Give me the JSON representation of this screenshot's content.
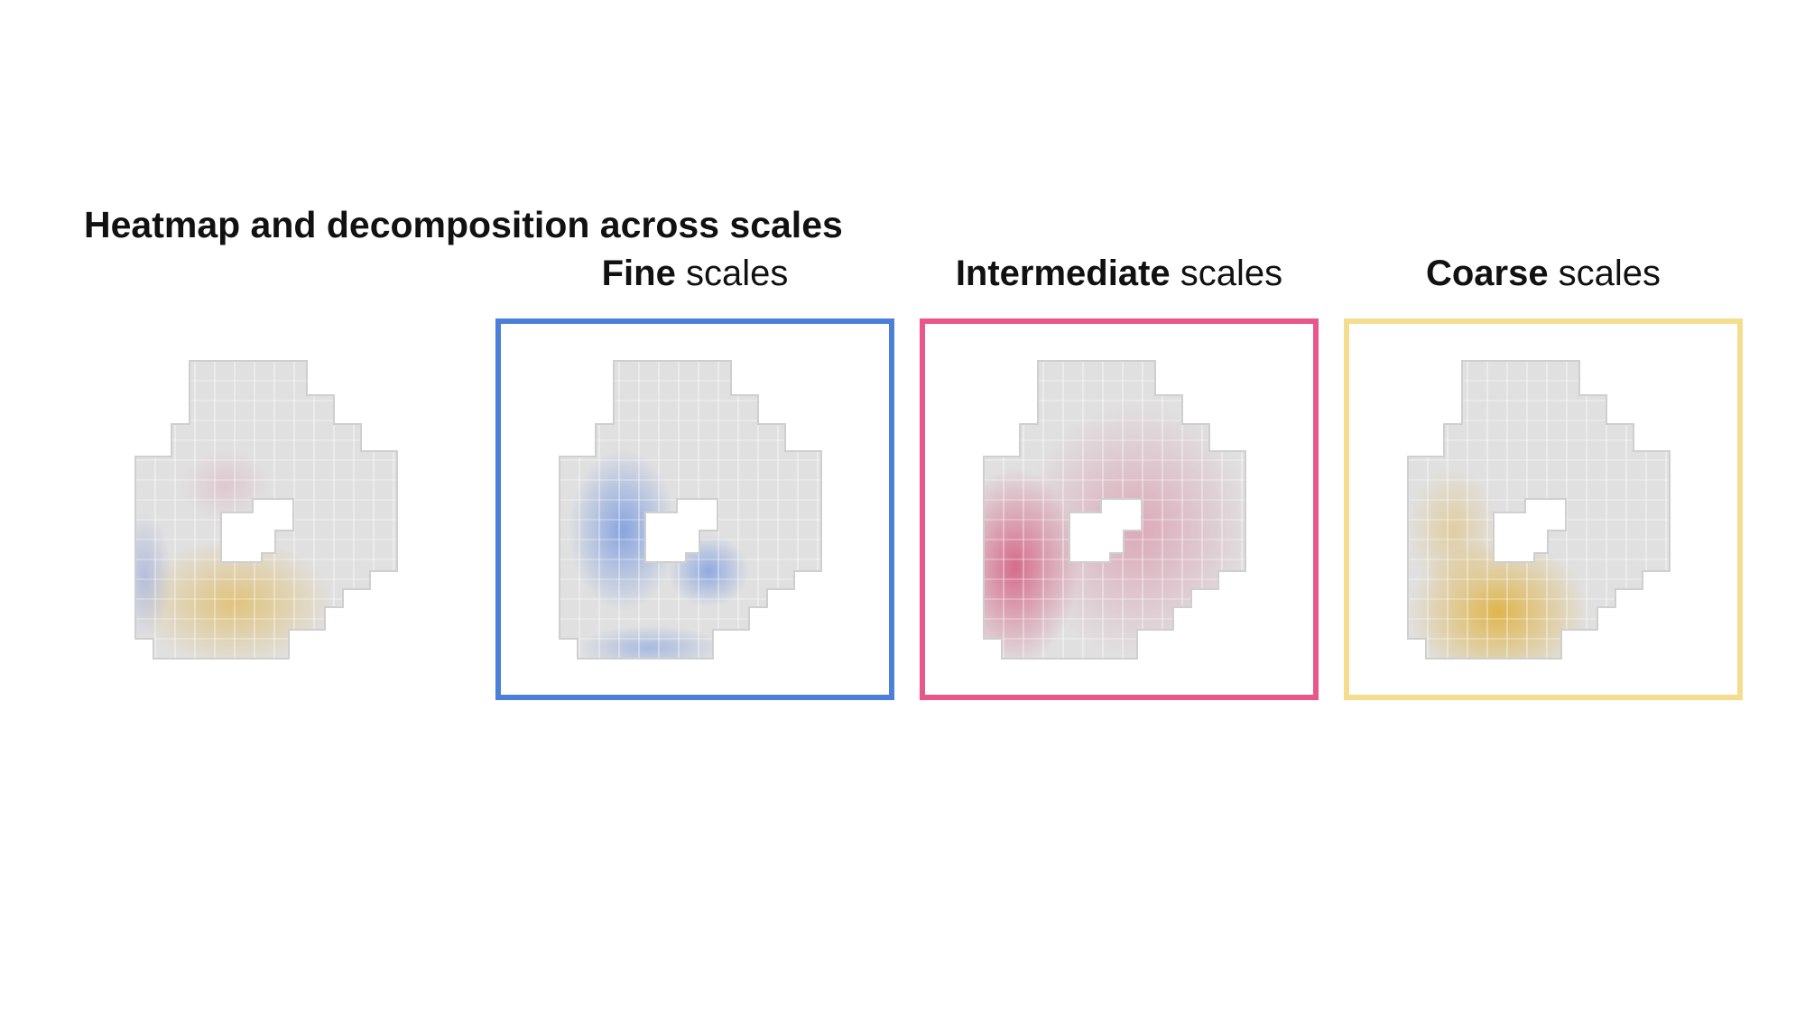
{
  "title": "Heatmap and decomposition across scales",
  "panels": [
    {
      "bold": "Fine",
      "rest": " scales",
      "frame_color": "#4a80d8",
      "highlight_color": "#3f74df"
    },
    {
      "bold": "Intermediate",
      "rest": " scales",
      "frame_color": "#e9568a",
      "highlight_color": "#d2456f"
    },
    {
      "bold": "Coarse",
      "rest": " scales",
      "frame_color": "#f4dd8f",
      "highlight_color": "#dfab29"
    }
  ],
  "heatmap": {
    "colors": [
      "#7f93d6",
      "#dfab29",
      "#d99ab0"
    ]
  },
  "icons": [
    "voxel-shape-icon"
  ]
}
